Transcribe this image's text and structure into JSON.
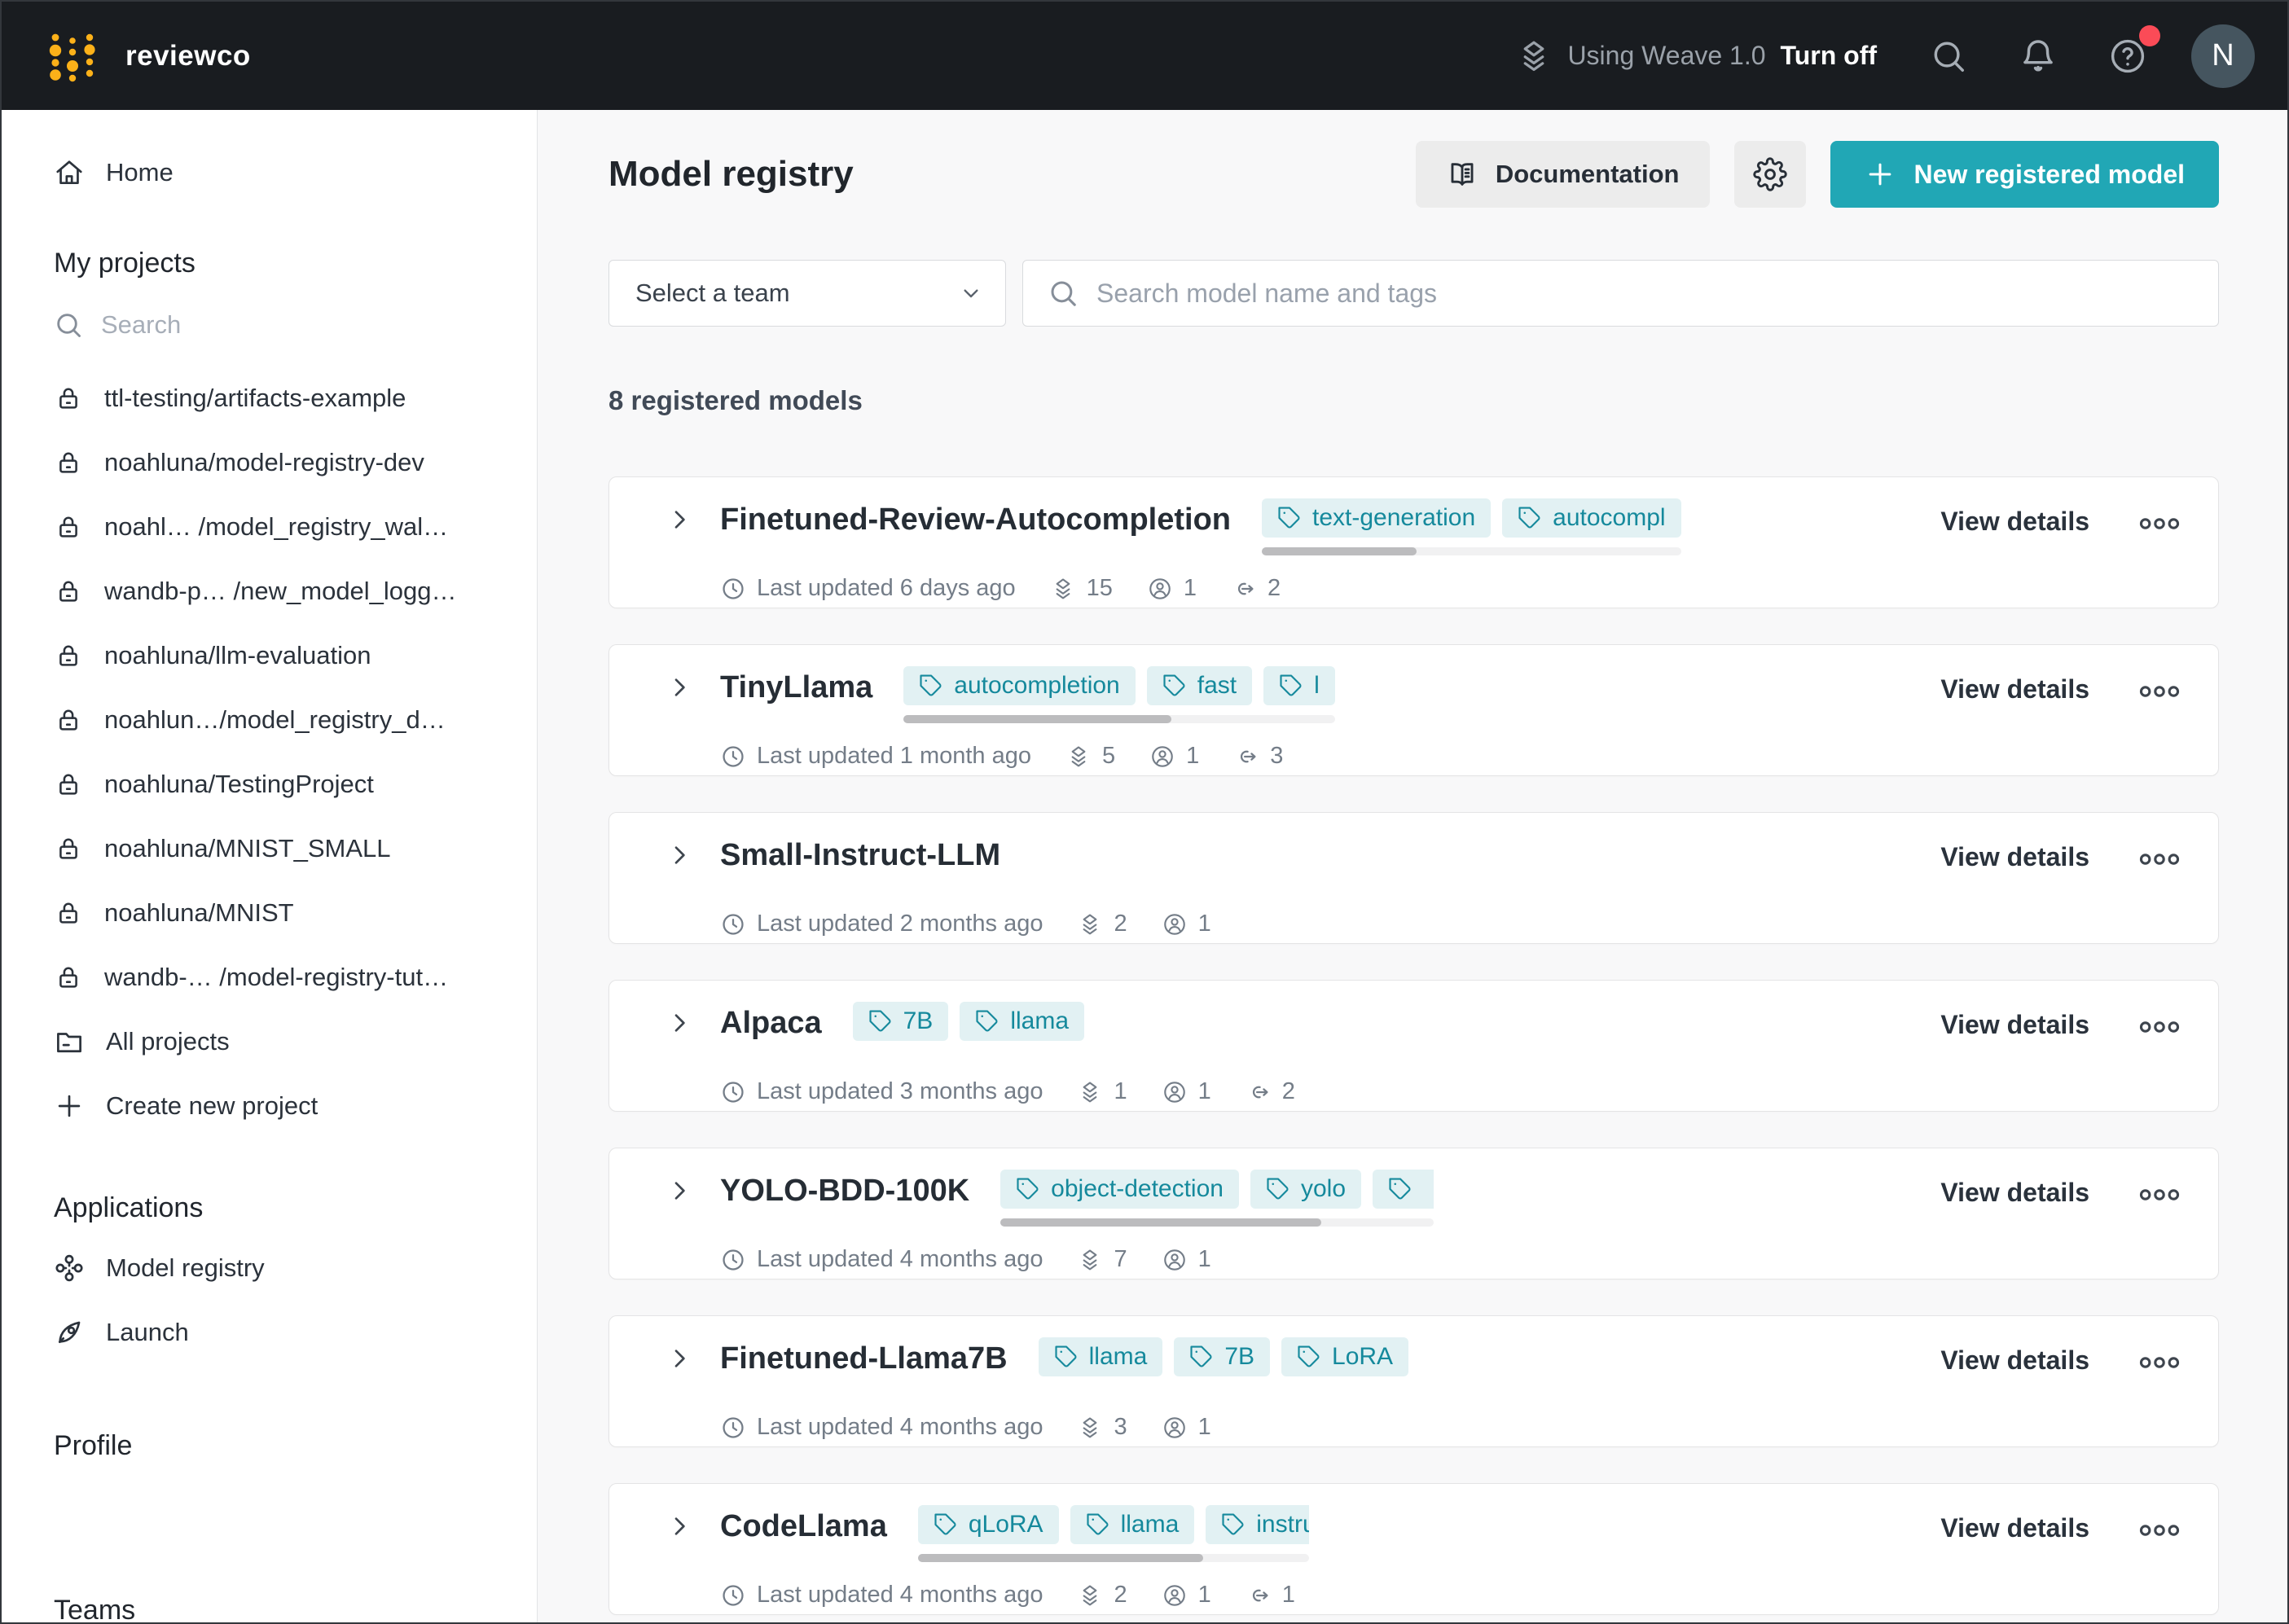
{
  "topbar": {
    "brand": "reviewco",
    "weave_label": "Using Weave 1.0",
    "weave_action": "Turn off",
    "avatar_initial": "N"
  },
  "sidebar": {
    "home_label": "Home",
    "my_projects_heading": "My projects",
    "search_placeholder": "Search",
    "projects": [
      "ttl-testing/artifacts-example",
      "noahluna/model-registry-dev",
      "noahl…  /model_registry_wal…",
      "wandb-p… /new_model_logg…",
      "noahluna/llm-evaluation",
      "noahlun…/model_registry_d…",
      "noahluna/TestingProject",
      "noahluna/MNIST_SMALL",
      "noahluna/MNIST",
      "wandb-…  /model-registry-tut…"
    ],
    "all_projects_label": "All projects",
    "create_new_project_label": "Create new project",
    "applications_heading": "Applications",
    "model_registry_label": "Model registry",
    "launch_label": "Launch",
    "profile_heading": "Profile",
    "teams_heading": "Teams"
  },
  "main": {
    "title": "Model registry",
    "documentation_button": "Documentation",
    "new_model_button": "New registered model",
    "team_select_value": "Select a team",
    "search_placeholder": "Search model name and tags",
    "count_label": "8 registered models",
    "view_details_label": "View details",
    "last_updated_prefix": "Last updated",
    "models": [
      {
        "name": "Finetuned-Review-Autocompletion",
        "tags": [
          "text-generation",
          "autocompl"
        ],
        "tags_overflow": true,
        "tags_max": 538,
        "scroll_thumb": 0.37,
        "updated": "6 days ago",
        "versions": 15,
        "members": 1,
        "links": 2
      },
      {
        "name": "TinyLlama",
        "tags": [
          "autocompletion",
          "fast",
          "l"
        ],
        "tags_overflow": true,
        "tags_max": 541,
        "scroll_thumb": 0.62,
        "updated": "1 month ago",
        "versions": 5,
        "members": 1,
        "links": 3
      },
      {
        "name": "Small-Instruct-LLM",
        "tags": [],
        "tags_overflow": false,
        "updated": "2 months ago",
        "versions": 2,
        "members": 1,
        "links": null
      },
      {
        "name": "Alpaca",
        "tags": [
          "7B",
          "llama"
        ],
        "tags_overflow": false,
        "updated": "3 months ago",
        "versions": 1,
        "members": 1,
        "links": 2
      },
      {
        "name": "YOLO-BDD-100K",
        "tags": [
          "object-detection",
          "yolo",
          ""
        ],
        "tags_overflow": true,
        "tags_max": 532,
        "scroll_thumb": 0.74,
        "updated": "4 months ago",
        "versions": 7,
        "members": 1,
        "links": null
      },
      {
        "name": "Finetuned-Llama7B",
        "tags": [
          "llama",
          "7B",
          "LoRA"
        ],
        "tags_overflow": false,
        "updated": "4 months ago",
        "versions": 3,
        "members": 1,
        "links": null
      },
      {
        "name": "CodeLlama",
        "tags": [
          "qLoRA",
          "llama",
          "instructi"
        ],
        "tags_overflow": true,
        "tags_max": 480,
        "scroll_thumb": 0.73,
        "updated": "4 months ago",
        "versions": 2,
        "members": 1,
        "links": 1
      }
    ]
  },
  "colors": {
    "accent_teal": "#21a7b5",
    "tag_bg": "#e2f1f3",
    "tag_text": "#15899c",
    "topbar_bg": "#191c20",
    "notification_dot": "#fb4b57",
    "logo_yellow": "#fcb119"
  }
}
